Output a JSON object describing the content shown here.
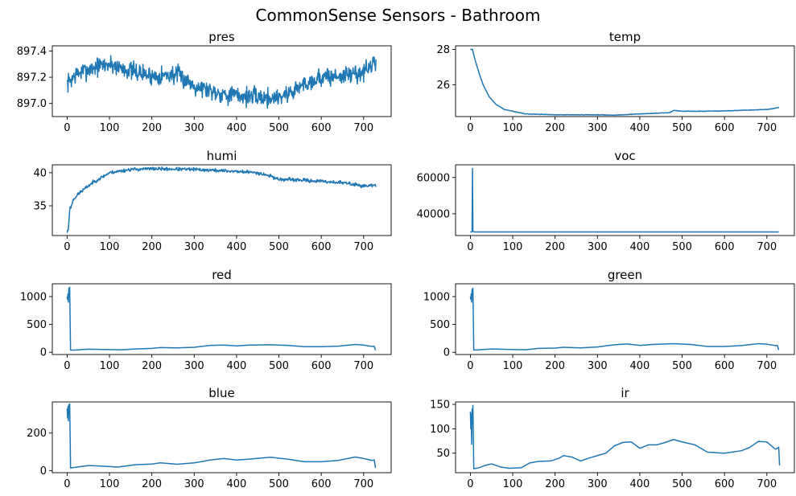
{
  "figure_title": "CommonSense Sensors - Bathroom",
  "line_color": "#1f77b4",
  "chart_data": [
    {
      "type": "line",
      "title": "pres",
      "xlim": [
        -35,
        765
      ],
      "ylim": [
        896.9,
        897.44
      ],
      "xticks": [
        0,
        100,
        200,
        300,
        400,
        500,
        600,
        700
      ],
      "yticks": [
        {
          "v": 897.0,
          "label": "897.0"
        },
        {
          "v": 897.2,
          "label": "897.2"
        },
        {
          "v": 897.4,
          "label": "897.4"
        }
      ],
      "baseline": [
        [
          0,
          897.15
        ],
        [
          20,
          897.22
        ],
        [
          50,
          897.26
        ],
        [
          80,
          897.29
        ],
        [
          100,
          897.3
        ],
        [
          150,
          897.25
        ],
        [
          200,
          897.21
        ],
        [
          260,
          897.22
        ],
        [
          300,
          897.14
        ],
        [
          360,
          897.08
        ],
        [
          400,
          897.06
        ],
        [
          450,
          897.05
        ],
        [
          480,
          897.04
        ],
        [
          520,
          897.07
        ],
        [
          560,
          897.15
        ],
        [
          600,
          897.2
        ],
        [
          650,
          897.21
        ],
        [
          700,
          897.24
        ],
        [
          725,
          897.3
        ]
      ],
      "noise": 0.05,
      "seed": 7,
      "n": 730
    },
    {
      "type": "line",
      "title": "temp",
      "xlim": [
        -35,
        765
      ],
      "ylim": [
        24.2,
        28.2
      ],
      "xticks": [
        0,
        100,
        200,
        300,
        400,
        500,
        600,
        700
      ],
      "yticks": [
        {
          "v": 26,
          "label": "26"
        },
        {
          "v": 28,
          "label": "28"
        }
      ],
      "baseline": [
        [
          0,
          28.0
        ],
        [
          5,
          28.0
        ],
        [
          10,
          27.5
        ],
        [
          20,
          26.7
        ],
        [
          30,
          26.0
        ],
        [
          45,
          25.3
        ],
        [
          60,
          24.9
        ],
        [
          80,
          24.6
        ],
        [
          100,
          24.5
        ],
        [
          130,
          24.35
        ],
        [
          200,
          24.3
        ],
        [
          300,
          24.3
        ],
        [
          340,
          24.28
        ],
        [
          400,
          24.35
        ],
        [
          470,
          24.42
        ],
        [
          480,
          24.55
        ],
        [
          500,
          24.5
        ],
        [
          550,
          24.5
        ],
        [
          600,
          24.52
        ],
        [
          700,
          24.6
        ],
        [
          728,
          24.7
        ]
      ],
      "noise": 0.01,
      "seed": 11,
      "n": 730
    },
    {
      "type": "line",
      "title": "humi",
      "xlim": [
        -35,
        765
      ],
      "ylim": [
        30.5,
        41.2
      ],
      "xticks": [
        0,
        100,
        200,
        300,
        400,
        500,
        600,
        700
      ],
      "yticks": [
        {
          "v": 35,
          "label": "35"
        },
        {
          "v": 40,
          "label": "40"
        }
      ],
      "baseline": [
        [
          0,
          31.0
        ],
        [
          3,
          31.5
        ],
        [
          6,
          34.5
        ],
        [
          10,
          35.0
        ],
        [
          15,
          36.0
        ],
        [
          30,
          37.0
        ],
        [
          60,
          38.5
        ],
        [
          100,
          40.0
        ],
        [
          150,
          40.5
        ],
        [
          200,
          40.6
        ],
        [
          250,
          40.55
        ],
        [
          300,
          40.5
        ],
        [
          350,
          40.35
        ],
        [
          400,
          40.2
        ],
        [
          450,
          40.0
        ],
        [
          480,
          39.5
        ],
        [
          500,
          39.0
        ],
        [
          550,
          38.9
        ],
        [
          600,
          38.7
        ],
        [
          650,
          38.5
        ],
        [
          700,
          38.0
        ],
        [
          730,
          38.1
        ]
      ],
      "noise": 0.18,
      "seed": 23,
      "n": 730
    },
    {
      "type": "line",
      "title": "voc",
      "xlim": [
        -35,
        765
      ],
      "ylim": [
        28000,
        67000
      ],
      "xticks": [
        0,
        100,
        200,
        300,
        400,
        500,
        600,
        700
      ],
      "yticks": [
        {
          "v": 40000,
          "label": "40000"
        },
        {
          "v": 60000,
          "label": "60000"
        }
      ],
      "points": [
        [
          0,
          30000
        ],
        [
          4,
          30000
        ],
        [
          5,
          65000
        ],
        [
          6,
          30500
        ],
        [
          8,
          30100
        ],
        [
          10,
          30000
        ],
        [
          728,
          30000
        ]
      ]
    },
    {
      "type": "line",
      "title": "red",
      "xlim": [
        -35,
        765
      ],
      "ylim": [
        -40,
        1230
      ],
      "xticks": [
        0,
        100,
        200,
        300,
        400,
        500,
        600,
        700
      ],
      "yticks": [
        {
          "v": 0,
          "label": "0"
        },
        {
          "v": 500,
          "label": "500"
        },
        {
          "v": 1000,
          "label": "1000"
        }
      ],
      "points": [
        [
          0,
          1000
        ],
        [
          1,
          950
        ],
        [
          2,
          1050
        ],
        [
          3,
          900
        ],
        [
          4,
          1150
        ],
        [
          5,
          1000
        ],
        [
          6,
          1170
        ],
        [
          7,
          600
        ],
        [
          8,
          40
        ],
        [
          20,
          42
        ],
        [
          50,
          55
        ],
        [
          100,
          48
        ],
        [
          130,
          45
        ],
        [
          160,
          60
        ],
        [
          200,
          70
        ],
        [
          220,
          85
        ],
        [
          260,
          80
        ],
        [
          300,
          90
        ],
        [
          340,
          125
        ],
        [
          370,
          130
        ],
        [
          400,
          115
        ],
        [
          430,
          130
        ],
        [
          480,
          135
        ],
        [
          520,
          125
        ],
        [
          560,
          100
        ],
        [
          600,
          100
        ],
        [
          640,
          110
        ],
        [
          680,
          140
        ],
        [
          700,
          130
        ],
        [
          720,
          105
        ],
        [
          725,
          110
        ],
        [
          728,
          40
        ]
      ]
    },
    {
      "type": "line",
      "title": "green",
      "xlim": [
        -35,
        765
      ],
      "ylim": [
        -40,
        1230
      ],
      "xticks": [
        0,
        100,
        200,
        300,
        400,
        500,
        600,
        700
      ],
      "yticks": [
        {
          "v": 0,
          "label": "0"
        },
        {
          "v": 500,
          "label": "500"
        },
        {
          "v": 1000,
          "label": "1000"
        }
      ],
      "points": [
        [
          0,
          1000
        ],
        [
          1,
          950
        ],
        [
          2,
          1050
        ],
        [
          3,
          900
        ],
        [
          4,
          1130
        ],
        [
          5,
          1000
        ],
        [
          6,
          1150
        ],
        [
          7,
          600
        ],
        [
          8,
          40
        ],
        [
          20,
          45
        ],
        [
          50,
          60
        ],
        [
          100,
          50
        ],
        [
          130,
          45
        ],
        [
          160,
          70
        ],
        [
          200,
          75
        ],
        [
          220,
          90
        ],
        [
          260,
          80
        ],
        [
          300,
          95
        ],
        [
          340,
          135
        ],
        [
          370,
          150
        ],
        [
          400,
          125
        ],
        [
          430,
          140
        ],
        [
          480,
          155
        ],
        [
          520,
          140
        ],
        [
          560,
          105
        ],
        [
          600,
          105
        ],
        [
          640,
          120
        ],
        [
          680,
          155
        ],
        [
          700,
          145
        ],
        [
          720,
          120
        ],
        [
          725,
          125
        ],
        [
          728,
          40
        ]
      ]
    },
    {
      "type": "line",
      "title": "blue",
      "xlim": [
        -35,
        765
      ],
      "ylim": [
        -10,
        365
      ],
      "xticks": [
        0,
        100,
        200,
        300,
        400,
        500,
        600,
        700
      ],
      "yticks": [
        {
          "v": 0,
          "label": "0"
        },
        {
          "v": 200,
          "label": "200"
        }
      ],
      "points": [
        [
          0,
          330
        ],
        [
          1,
          280
        ],
        [
          2,
          340
        ],
        [
          3,
          265
        ],
        [
          4,
          350
        ],
        [
          5,
          300
        ],
        [
          6,
          355
        ],
        [
          7,
          200
        ],
        [
          8,
          15
        ],
        [
          30,
          22
        ],
        [
          50,
          28
        ],
        [
          80,
          25
        ],
        [
          120,
          20
        ],
        [
          160,
          32
        ],
        [
          200,
          36
        ],
        [
          220,
          42
        ],
        [
          260,
          35
        ],
        [
          300,
          42
        ],
        [
          340,
          58
        ],
        [
          370,
          65
        ],
        [
          400,
          57
        ],
        [
          430,
          62
        ],
        [
          480,
          72
        ],
        [
          520,
          62
        ],
        [
          560,
          48
        ],
        [
          600,
          48
        ],
        [
          640,
          55
        ],
        [
          680,
          73
        ],
        [
          700,
          65
        ],
        [
          720,
          55
        ],
        [
          725,
          58
        ],
        [
          728,
          15
        ]
      ]
    },
    {
      "type": "line",
      "title": "ir",
      "xlim": [
        -35,
        765
      ],
      "ylim": [
        10,
        155
      ],
      "xticks": [
        0,
        100,
        200,
        300,
        400,
        500,
        600,
        700
      ],
      "yticks": [
        {
          "v": 50,
          "label": "50"
        },
        {
          "v": 100,
          "label": "100"
        },
        {
          "v": 150,
          "label": "150"
        }
      ],
      "points": [
        [
          0,
          135
        ],
        [
          1,
          100
        ],
        [
          2,
          130
        ],
        [
          3,
          68
        ],
        [
          4,
          140
        ],
        [
          5,
          110
        ],
        [
          6,
          148
        ],
        [
          7,
          90
        ],
        [
          8,
          18
        ],
        [
          20,
          20
        ],
        [
          35,
          25
        ],
        [
          50,
          28
        ],
        [
          70,
          22
        ],
        [
          90,
          19
        ],
        [
          120,
          20
        ],
        [
          140,
          30
        ],
        [
          160,
          33
        ],
        [
          190,
          34
        ],
        [
          210,
          40
        ],
        [
          220,
          45
        ],
        [
          240,
          42
        ],
        [
          260,
          34
        ],
        [
          280,
          40
        ],
        [
          300,
          45
        ],
        [
          320,
          50
        ],
        [
          340,
          65
        ],
        [
          360,
          72
        ],
        [
          380,
          73
        ],
        [
          400,
          60
        ],
        [
          420,
          67
        ],
        [
          440,
          67
        ],
        [
          460,
          72
        ],
        [
          480,
          78
        ],
        [
          500,
          73
        ],
        [
          530,
          67
        ],
        [
          560,
          52
        ],
        [
          600,
          50
        ],
        [
          640,
          55
        ],
        [
          660,
          62
        ],
        [
          680,
          74
        ],
        [
          700,
          73
        ],
        [
          720,
          58
        ],
        [
          728,
          62
        ],
        [
          730,
          25
        ]
      ]
    }
  ]
}
